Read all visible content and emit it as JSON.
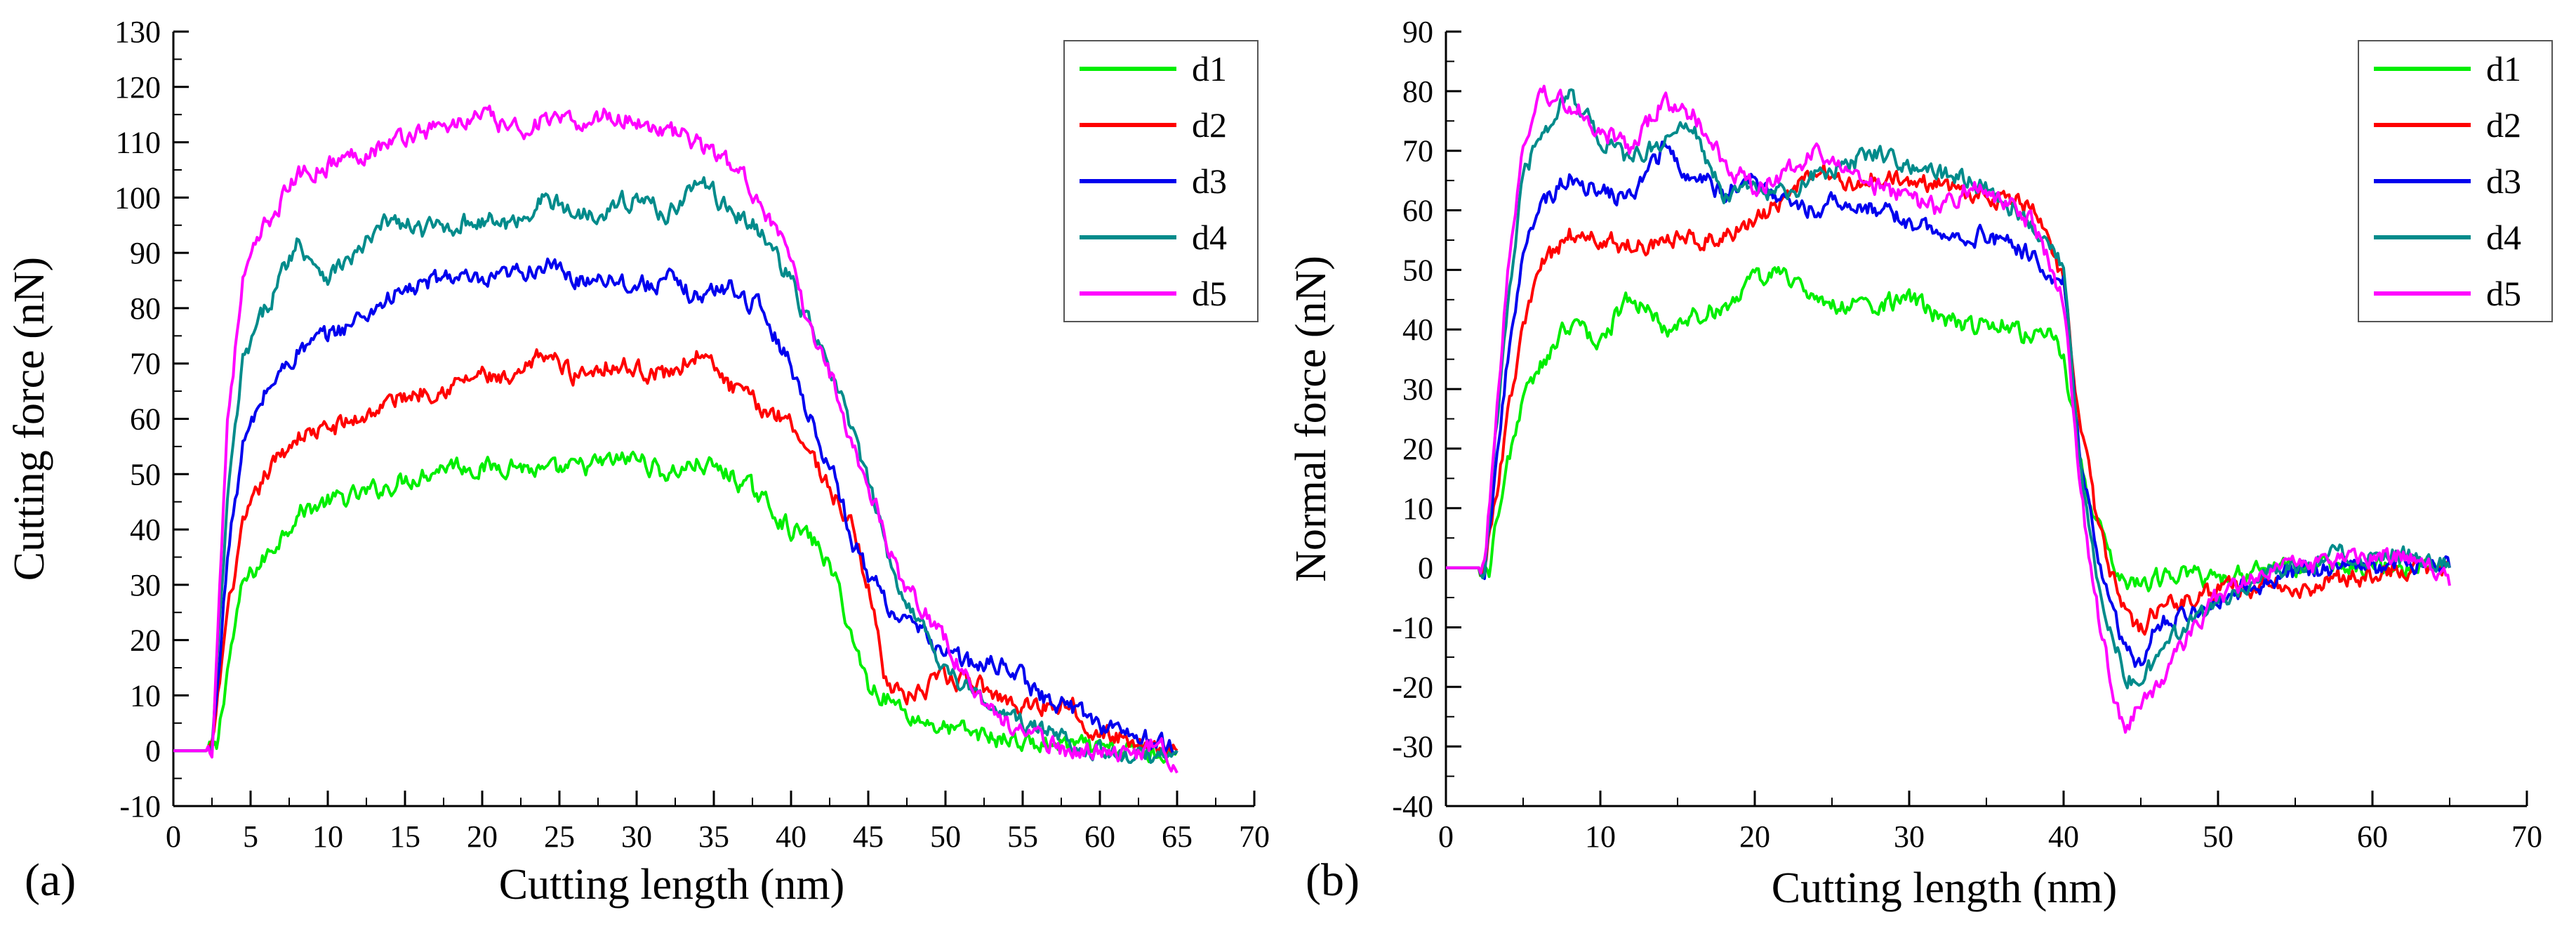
{
  "chart_data": [
    {
      "type": "line",
      "panel_label": "(a)",
      "xlabel": "Cutting length (nm)",
      "ylabel": "Cutting force (nN)",
      "xlim": [
        0,
        70
      ],
      "ylim": [
        -10,
        130
      ],
      "xticks": [
        0,
        5,
        10,
        15,
        20,
        25,
        30,
        35,
        40,
        45,
        50,
        55,
        60,
        65,
        70
      ],
      "yticks": [
        -10,
        0,
        10,
        20,
        30,
        40,
        50,
        60,
        70,
        80,
        90,
        100,
        110,
        120,
        130
      ],
      "grid": false,
      "legend_position": "top-right",
      "series": [
        {
          "name": "d1",
          "color": "#00ee00",
          "x": [
            0,
            1.5,
            2,
            2.8,
            3.5,
            4.5,
            6,
            8,
            10,
            12,
            14,
            16,
            18,
            20,
            22,
            24,
            26,
            28,
            30,
            32,
            34,
            36,
            38,
            40,
            41,
            42,
            43,
            44,
            45,
            46,
            47,
            48,
            50,
            52,
            54,
            56,
            58,
            60,
            62,
            64,
            65
          ],
          "y": [
            0,
            0,
            0,
            0,
            15,
            30,
            35,
            43,
            45,
            46,
            48,
            50,
            52,
            51,
            52,
            50,
            51,
            52,
            53,
            50,
            52,
            50,
            46,
            40,
            39,
            36,
            30,
            20,
            12,
            10,
            8,
            6,
            4,
            3,
            2,
            1,
            1,
            0,
            0,
            0,
            0
          ]
        },
        {
          "name": "d2",
          "color": "#ff0000",
          "x": [
            0,
            1.5,
            2,
            2.5,
            3.5,
            4.5,
            6,
            8,
            10,
            12,
            14,
            16,
            18,
            20,
            22,
            24,
            26,
            28,
            30,
            32,
            34,
            36,
            38,
            40,
            41,
            42,
            43,
            44,
            45,
            46,
            47,
            48,
            50,
            52,
            54,
            56,
            58,
            60,
            62,
            64,
            65
          ],
          "y": [
            0,
            0,
            0,
            0,
            25,
            40,
            50,
            57,
            58,
            60,
            63,
            65,
            66,
            68,
            66,
            72,
            68,
            70,
            69,
            68,
            72,
            66,
            62,
            60,
            55,
            50,
            45,
            40,
            30,
            15,
            10,
            10,
            13,
            12,
            9,
            8,
            9,
            3,
            2,
            1,
            0
          ]
        },
        {
          "name": "d3",
          "color": "#0000ee",
          "x": [
            0,
            1.5,
            2,
            2.5,
            3.5,
            4.5,
            6,
            8,
            10,
            12,
            14,
            16,
            18,
            20,
            22,
            24,
            26,
            28,
            30,
            32,
            34,
            36,
            38,
            40,
            41,
            42,
            43,
            44,
            45,
            46,
            47,
            48,
            50,
            52,
            54,
            56,
            58,
            60,
            62,
            64,
            65
          ],
          "y": [
            0,
            0,
            0,
            0,
            35,
            55,
            65,
            72,
            75,
            78,
            82,
            84,
            86,
            84,
            86,
            88,
            85,
            86,
            84,
            85,
            82,
            84,
            80,
            70,
            62,
            55,
            48,
            38,
            32,
            28,
            24,
            22,
            18,
            15,
            16,
            10,
            8,
            5,
            3,
            1,
            0
          ]
        },
        {
          "name": "d4",
          "color": "#008b8b",
          "x": [
            0,
            1.5,
            2,
            2.5,
            3.5,
            4.5,
            6,
            8,
            10,
            12,
            14,
            16,
            18,
            20,
            22,
            24,
            26,
            28,
            30,
            32,
            34,
            36,
            38,
            40,
            41,
            42,
            43,
            44,
            45,
            46,
            47,
            48,
            50,
            52,
            54,
            56,
            58,
            60,
            62,
            64,
            65
          ],
          "y": [
            0,
            0,
            0,
            0,
            45,
            70,
            80,
            92,
            86,
            90,
            96,
            94,
            95,
            96,
            95,
            100,
            97,
            98,
            100,
            97,
            103,
            98,
            94,
            85,
            78,
            72,
            65,
            58,
            48,
            38,
            30,
            25,
            15,
            10,
            6,
            4,
            2,
            0,
            -2,
            0,
            0
          ]
        },
        {
          "name": "d5",
          "color": "#ff00ff",
          "x": [
            0,
            1.5,
            2,
            2.5,
            3.5,
            4.5,
            6,
            8,
            10,
            12,
            14,
            16,
            18,
            20,
            22,
            24,
            26,
            28,
            30,
            32,
            34,
            36,
            38,
            40,
            41,
            42,
            43,
            44,
            45,
            46,
            47,
            48,
            50,
            52,
            54,
            56,
            58,
            60,
            62,
            64,
            65
          ],
          "y": [
            0,
            0,
            0,
            0,
            60,
            85,
            95,
            104,
            106,
            108,
            110,
            112,
            113,
            115,
            112,
            114,
            113,
            115,
            114,
            112,
            110,
            106,
            100,
            88,
            78,
            72,
            65,
            55,
            48,
            40,
            32,
            28,
            20,
            10,
            5,
            2,
            0,
            0,
            -1,
            2,
            -4
          ]
        }
      ]
    },
    {
      "type": "line",
      "panel_label": "(b)",
      "xlabel": "Cutting length (nm)",
      "ylabel": "Normal force (nN)",
      "xlim": [
        0,
        70
      ],
      "ylim": [
        -40,
        90
      ],
      "xticks": [
        0,
        10,
        20,
        30,
        40,
        50,
        60,
        70
      ],
      "yticks": [
        -40,
        -30,
        -20,
        -10,
        0,
        10,
        20,
        30,
        40,
        50,
        60,
        70,
        80,
        90
      ],
      "grid": false,
      "legend_position": "top-right",
      "series": [
        {
          "name": "d1",
          "color": "#00ee00",
          "x": [
            0,
            1.5,
            2,
            2.8,
            4,
            5,
            6,
            8,
            10,
            12,
            14,
            16,
            18,
            20,
            22,
            24,
            26,
            28,
            30,
            32,
            34,
            36,
            38,
            39,
            40,
            41,
            42,
            43,
            44,
            45,
            46,
            48,
            50,
            52,
            54,
            56,
            58,
            60,
            62,
            64,
            65
          ],
          "y": [
            0,
            0,
            0,
            0,
            18,
            28,
            33,
            41,
            38,
            46,
            40,
            42,
            44,
            48,
            50,
            44,
            44,
            44,
            45,
            42,
            40,
            42,
            38,
            40,
            35,
            20,
            8,
            2,
            -2,
            -3,
            -2,
            -1,
            -2,
            -1,
            0,
            0,
            0,
            0,
            0,
            0,
            0
          ]
        },
        {
          "name": "d2",
          "color": "#ff0000",
          "x": [
            0,
            1.5,
            2,
            2.5,
            4,
            5,
            6,
            8,
            10,
            12,
            14,
            16,
            18,
            20,
            22,
            24,
            26,
            28,
            30,
            32,
            34,
            36,
            38,
            39,
            40,
            41,
            42,
            43,
            44,
            45,
            46,
            48,
            50,
            52,
            54,
            56,
            58,
            60,
            62,
            64,
            65
          ],
          "y": [
            0,
            0,
            0,
            0,
            25,
            40,
            50,
            56,
            55,
            54,
            55,
            55,
            56,
            58,
            62,
            67,
            64,
            66,
            64,
            65,
            63,
            62,
            60,
            55,
            48,
            25,
            10,
            0,
            -8,
            -10,
            -7,
            -5,
            -4,
            -3,
            -3,
            -3,
            -2,
            -1,
            0,
            0,
            0
          ]
        },
        {
          "name": "d3",
          "color": "#0000ee",
          "x": [
            0,
            1.5,
            2,
            2.5,
            4,
            5,
            6,
            8,
            10,
            12,
            14,
            16,
            18,
            20,
            22,
            24,
            26,
            28,
            30,
            32,
            34,
            36,
            38,
            39,
            40,
            41,
            42,
            43,
            44,
            45,
            46,
            48,
            50,
            52,
            54,
            56,
            58,
            60,
            62,
            64,
            65
          ],
          "y": [
            0,
            0,
            0,
            0,
            35,
            52,
            60,
            66,
            63,
            62,
            70,
            66,
            63,
            65,
            62,
            60,
            62,
            60,
            58,
            56,
            56,
            55,
            52,
            50,
            48,
            20,
            5,
            -5,
            -14,
            -16,
            -10,
            -7,
            -5,
            -3,
            -2,
            0,
            0,
            0,
            1,
            0,
            0
          ]
        },
        {
          "name": "d4",
          "color": "#008b8b",
          "x": [
            0,
            1.5,
            2,
            2.5,
            4,
            5,
            6,
            8,
            10,
            12,
            14,
            16,
            18,
            20,
            22,
            24,
            26,
            28,
            30,
            32,
            34,
            36,
            38,
            39,
            40,
            41,
            42,
            43,
            44,
            45,
            46,
            48,
            50,
            52,
            54,
            56,
            58,
            60,
            62,
            64,
            65
          ],
          "y": [
            0,
            0,
            0,
            0,
            45,
            65,
            72,
            80,
            72,
            68,
            72,
            74,
            62,
            64,
            62,
            66,
            68,
            70,
            68,
            66,
            65,
            62,
            58,
            55,
            50,
            18,
            0,
            -10,
            -18,
            -20,
            -15,
            -10,
            -6,
            -2,
            0,
            1,
            2,
            2,
            2,
            1,
            0
          ]
        },
        {
          "name": "d5",
          "color": "#ff00ff",
          "x": [
            0,
            1.5,
            2,
            2.5,
            4,
            5,
            6,
            8,
            10,
            12,
            14,
            16,
            18,
            20,
            22,
            24,
            26,
            28,
            30,
            32,
            34,
            36,
            38,
            39,
            40,
            41,
            42,
            43,
            44,
            45,
            46,
            48,
            50,
            52,
            54,
            56,
            58,
            60,
            62,
            64,
            65
          ],
          "y": [
            0,
            0,
            0,
            0,
            50,
            70,
            80,
            78,
            74,
            70,
            78,
            76,
            68,
            64,
            66,
            70,
            66,
            64,
            62,
            60,
            64,
            62,
            58,
            52,
            45,
            15,
            -5,
            -18,
            -28,
            -22,
            -20,
            -12,
            -5,
            -2,
            1,
            0,
            1,
            2,
            2,
            0,
            -3
          ]
        }
      ]
    }
  ]
}
